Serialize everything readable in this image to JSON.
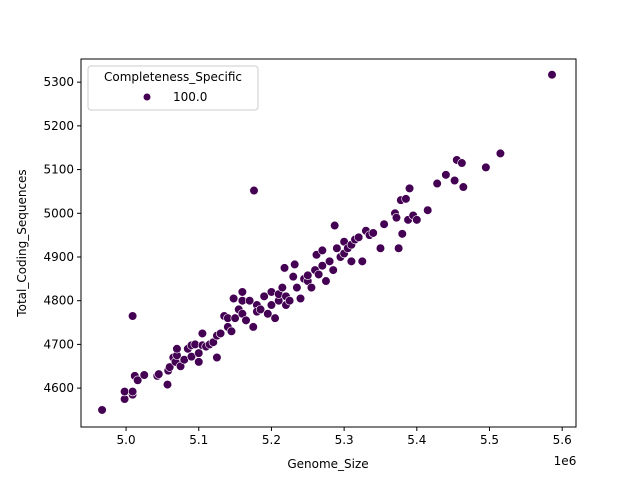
{
  "chart_data": {
    "type": "scatter",
    "xlabel": "Genome_Size",
    "ylabel": "Total_Coding_Sequences",
    "x_offset_label": "1e6",
    "xlim": [
      4.938,
      5.619
    ],
    "ylim": [
      4511,
      5353
    ],
    "xticks": [
      5.0,
      5.1,
      5.2,
      5.3,
      5.4,
      5.5,
      5.6
    ],
    "xtick_labels": [
      "5.0",
      "5.1",
      "5.2",
      "5.3",
      "5.4",
      "5.5",
      "5.6"
    ],
    "yticks": [
      4600,
      4700,
      4800,
      4900,
      5000,
      5100,
      5200,
      5300
    ],
    "ytick_labels": [
      "4600",
      "4700",
      "4800",
      "4900",
      "5000",
      "5100",
      "5200",
      "5300"
    ],
    "grid": false,
    "legend": {
      "title": "Completeness_Specific",
      "placement": "top-left",
      "entries": [
        {
          "label": "100.0",
          "color": "#440154"
        }
      ]
    },
    "marker_color": "#440154",
    "series": [
      {
        "name": "100.0",
        "points": [
          [
            4.967,
            4550
          ],
          [
            4.998,
            4575
          ],
          [
            4.998,
            4592
          ],
          [
            5.009,
            4585
          ],
          [
            5.009,
            4592
          ],
          [
            5.009,
            4765
          ],
          [
            5.012,
            4628
          ],
          [
            5.016,
            4618
          ],
          [
            5.025,
            4630
          ],
          [
            5.043,
            4628
          ],
          [
            5.045,
            4632
          ],
          [
            5.057,
            4608
          ],
          [
            5.058,
            4640
          ],
          [
            5.06,
            4648
          ],
          [
            5.065,
            4670
          ],
          [
            5.068,
            4660
          ],
          [
            5.07,
            4675
          ],
          [
            5.07,
            4690
          ],
          [
            5.075,
            4650
          ],
          [
            5.08,
            4665
          ],
          [
            5.085,
            4690
          ],
          [
            5.09,
            4672
          ],
          [
            5.09,
            4698
          ],
          [
            5.095,
            4700
          ],
          [
            5.1,
            4680
          ],
          [
            5.1,
            4660
          ],
          [
            5.105,
            4725
          ],
          [
            5.105,
            4698
          ],
          [
            5.11,
            4695
          ],
          [
            5.115,
            4700
          ],
          [
            5.12,
            4705
          ],
          [
            5.125,
            4720
          ],
          [
            5.125,
            4670
          ],
          [
            5.13,
            4725
          ],
          [
            5.135,
            4765
          ],
          [
            5.14,
            4740
          ],
          [
            5.14,
            4760
          ],
          [
            5.145,
            4730
          ],
          [
            5.148,
            4805
          ],
          [
            5.15,
            4760
          ],
          [
            5.155,
            4780
          ],
          [
            5.16,
            4820
          ],
          [
            5.16,
            4770
          ],
          [
            5.16,
            4800
          ],
          [
            5.165,
            4755
          ],
          [
            5.17,
            4800
          ],
          [
            5.175,
            4740
          ],
          [
            5.176,
            5052
          ],
          [
            5.18,
            4790
          ],
          [
            5.18,
            4775
          ],
          [
            5.185,
            4780
          ],
          [
            5.19,
            4810
          ],
          [
            5.195,
            4770
          ],
          [
            5.2,
            4820
          ],
          [
            5.2,
            4790
          ],
          [
            5.205,
            4760
          ],
          [
            5.21,
            4800
          ],
          [
            5.21,
            4815
          ],
          [
            5.215,
            4830
          ],
          [
            5.218,
            4875
          ],
          [
            5.22,
            4810
          ],
          [
            5.22,
            4790
          ],
          [
            5.225,
            4800
          ],
          [
            5.23,
            4855
          ],
          [
            5.232,
            4883
          ],
          [
            5.235,
            4830
          ],
          [
            5.24,
            4805
          ],
          [
            5.245,
            4850
          ],
          [
            5.25,
            4845
          ],
          [
            5.25,
            4858
          ],
          [
            5.255,
            4830
          ],
          [
            5.26,
            4870
          ],
          [
            5.262,
            4905
          ],
          [
            5.265,
            4860
          ],
          [
            5.27,
            4915
          ],
          [
            5.27,
            4880
          ],
          [
            5.275,
            4845
          ],
          [
            5.28,
            4890
          ],
          [
            5.285,
            4870
          ],
          [
            5.287,
            4972
          ],
          [
            5.29,
            4920
          ],
          [
            5.295,
            4900
          ],
          [
            5.3,
            4935
          ],
          [
            5.3,
            4908
          ],
          [
            5.305,
            4920
          ],
          [
            5.31,
            4890
          ],
          [
            5.31,
            4928
          ],
          [
            5.315,
            4940
          ],
          [
            5.32,
            4945
          ],
          [
            5.325,
            4890
          ],
          [
            5.33,
            4960
          ],
          [
            5.335,
            4950
          ],
          [
            5.34,
            4955
          ],
          [
            5.35,
            4920
          ],
          [
            5.355,
            4975
          ],
          [
            5.37,
            5000
          ],
          [
            5.372,
            4990
          ],
          [
            5.375,
            4920
          ],
          [
            5.378,
            5030
          ],
          [
            5.38,
            4953
          ],
          [
            5.385,
            5033
          ],
          [
            5.388,
            4985
          ],
          [
            5.39,
            5057
          ],
          [
            5.395,
            4995
          ],
          [
            5.4,
            4985
          ],
          [
            5.415,
            5007
          ],
          [
            5.428,
            5068
          ],
          [
            5.44,
            5088
          ],
          [
            5.452,
            5075
          ],
          [
            5.455,
            5122
          ],
          [
            5.462,
            5115
          ],
          [
            5.464,
            5060
          ],
          [
            5.495,
            5105
          ],
          [
            5.515,
            5137
          ],
          [
            5.586,
            5317
          ]
        ]
      }
    ]
  }
}
